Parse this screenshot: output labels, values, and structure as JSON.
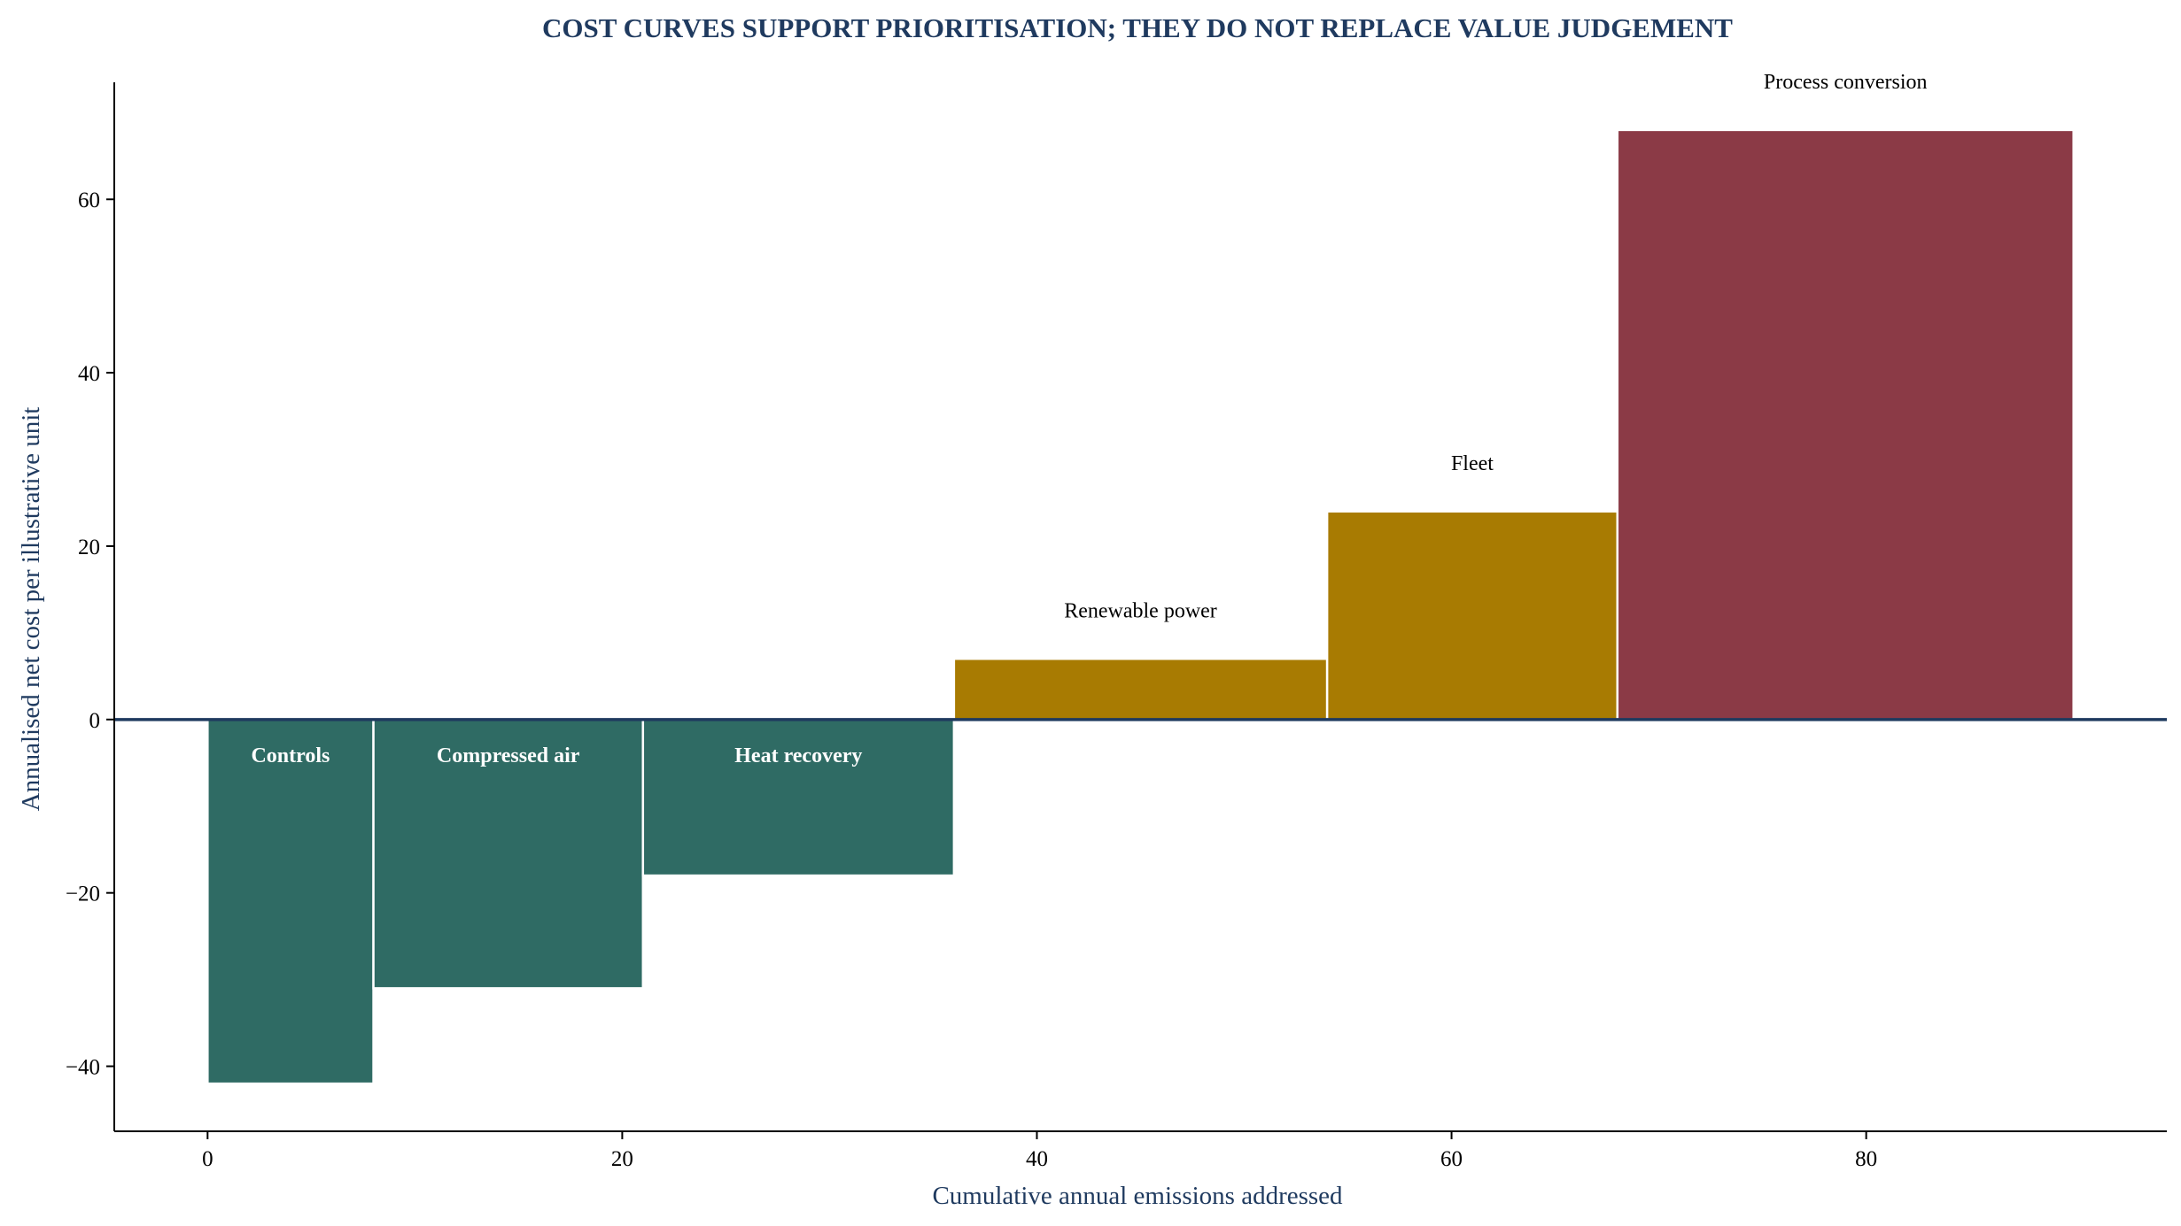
{
  "chart_data": {
    "type": "bar",
    "subtype": "marginal-abatement-cost-curve",
    "title": "COST CURVES SUPPORT PRIORITISATION; THEY DO NOT REPLACE VALUE JUDGEMENT",
    "xlabel": "Cumulative annual emissions addressed",
    "ylabel": "Annualised net cost per illustrative unit",
    "xlim": [
      -4.5,
      94.5
    ],
    "ylim": [
      -47.5,
      73.5
    ],
    "xticks": [
      0,
      20,
      40,
      60,
      80
    ],
    "yticks": [
      -40,
      -20,
      0,
      20,
      40,
      60
    ],
    "grid": false,
    "legend": "none",
    "bars": [
      {
        "label": "Controls",
        "x_start": 0,
        "x_end": 8,
        "value": -42,
        "color": "#2f6b64"
      },
      {
        "label": "Compressed air",
        "x_start": 8,
        "x_end": 21,
        "value": -31,
        "color": "#2f6b64"
      },
      {
        "label": "Heat recovery",
        "x_start": 21,
        "x_end": 36,
        "value": -18,
        "color": "#2f6b64"
      },
      {
        "label": "Renewable power",
        "x_start": 36,
        "x_end": 54,
        "value": 7,
        "color": "#a87b02"
      },
      {
        "label": "Fleet",
        "x_start": 54,
        "x_end": 68,
        "value": 24,
        "color": "#a87b02"
      },
      {
        "label": "Process conversion",
        "x_start": 68,
        "x_end": 90,
        "value": 68,
        "color": "#8b3a46"
      }
    ]
  },
  "colors": {
    "title": "#1f3a5f",
    "axis_label": "#1f3a5f",
    "zero_line": "#1f3a5f",
    "axis": "#000000"
  }
}
